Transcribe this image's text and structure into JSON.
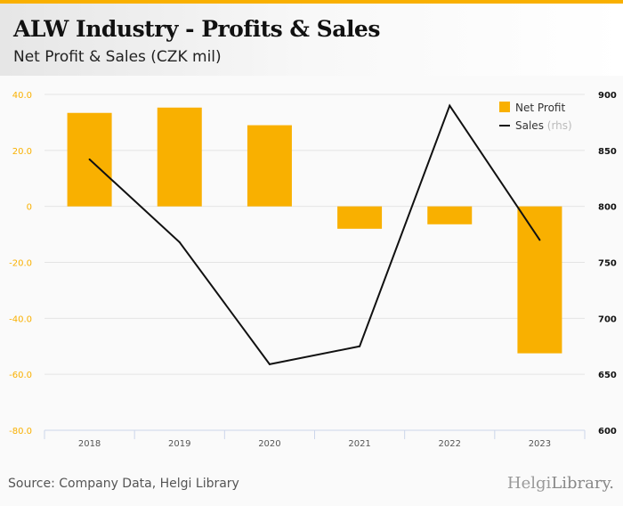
{
  "header": {
    "title": "ALW Industry - Profits & Sales",
    "subtitle": "Net Profit & Sales (CZK mil)"
  },
  "footer": {
    "source": "Source: Company Data, Helgi Library",
    "logo_main": "Helgi",
    "logo_rest": "Library."
  },
  "colors": {
    "accent": "#f9b000",
    "line": "#111111"
  },
  "chart_data": {
    "type": "bar+line",
    "title": "ALW Industry - Profits & Sales",
    "categories": [
      "2018",
      "2019",
      "2020",
      "2021",
      "2022",
      "2023"
    ],
    "series": [
      {
        "name": "Net Profit",
        "type": "bar",
        "axis": "left",
        "values": [
          33.4,
          35.3,
          29.0,
          -8.0,
          -6.4,
          -52.5
        ]
      },
      {
        "name": "Sales",
        "suffix": "(rhs)",
        "type": "line",
        "axis": "right",
        "values": [
          842,
          768,
          659,
          675,
          890,
          770
        ]
      }
    ],
    "left_axis": {
      "ylim": [
        -80,
        40
      ],
      "ticks": [
        "40.0",
        "20.0",
        "0",
        "-20.0",
        "-40.0",
        "-60.0",
        "-80.0"
      ]
    },
    "right_axis": {
      "ylim": [
        600,
        900
      ],
      "ticks": [
        "900",
        "850",
        "800",
        "750",
        "700",
        "650",
        "600"
      ]
    },
    "legend": {
      "placement": "top-right",
      "items": [
        "Net Profit",
        "Sales"
      ],
      "rhs_note": "(rhs)"
    },
    "grid": true
  }
}
